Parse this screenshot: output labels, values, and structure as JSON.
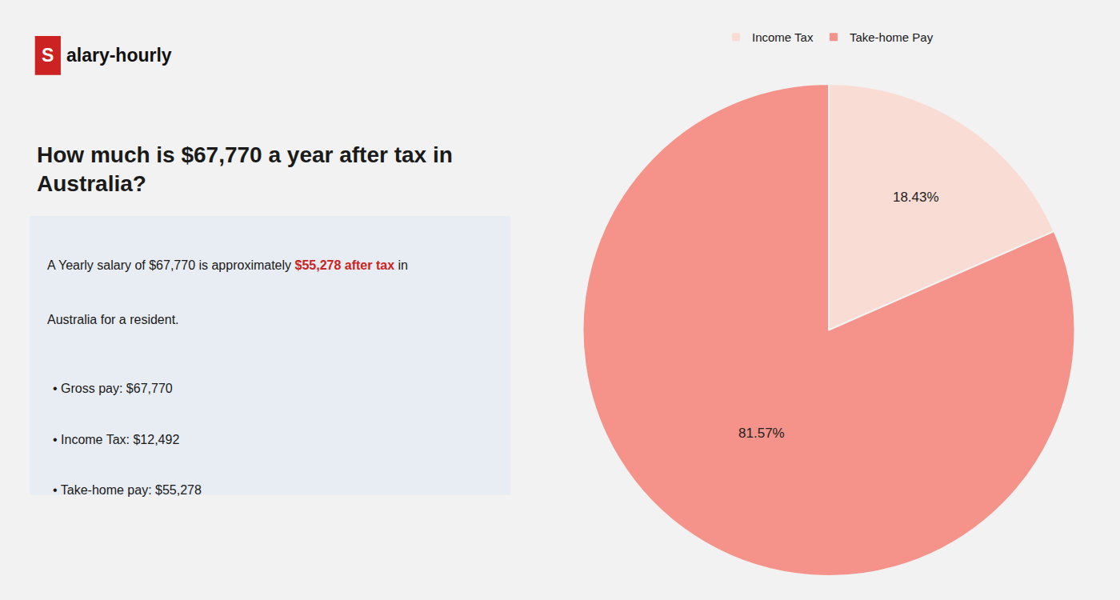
{
  "chart_data": {
    "type": "pie",
    "title": "How much is $67,770 a year after tax in Australia?",
    "annotations": [
      {
        "text": "S",
        "color": "#ffffff"
      },
      {
        "text": "alary-hourly",
        "color": "#111111"
      },
      {
        "text": "A Yearly salary of $67,770 is approximately ",
        "color": "#1a1a1a"
      },
      {
        "text": "$55,278 after tax",
        "color": "#cc2222"
      },
      {
        "text": " in",
        "color": "#1a1a1a"
      },
      {
        "text": "Australia for a resident.",
        "color": "#1a1a1a"
      },
      {
        "text": "• Gross pay: $67,770",
        "color": "#1a1a1a"
      },
      {
        "text": "• Income Tax: $12,492",
        "color": "#1a1a1a"
      },
      {
        "text": "• Take-home pay: $55,278",
        "color": "#1a1a1a"
      }
    ],
    "categories": [
      "Income Tax",
      "Take-home Pay"
    ],
    "values": [
      18.43,
      81.57
    ],
    "value_labels": [
      "18.43%",
      "81.57%"
    ],
    "colors": [
      "#f9ddd5",
      "#f5938a"
    ],
    "data_labels": true,
    "legend": "top"
  }
}
